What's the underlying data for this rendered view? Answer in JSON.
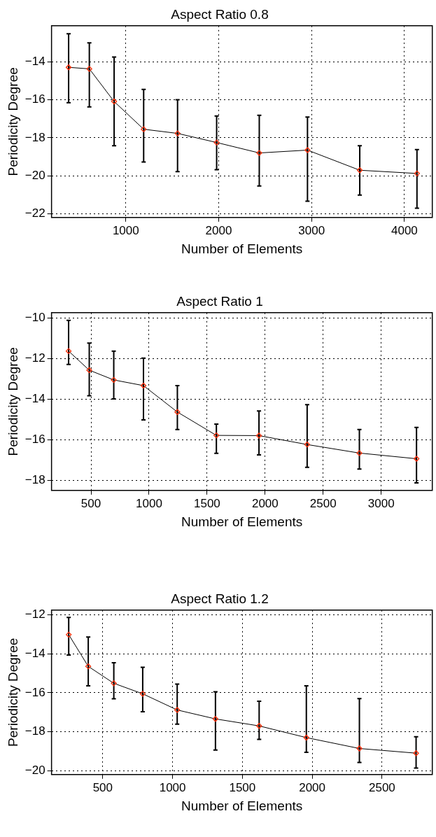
{
  "chart_data": [
    {
      "type": "line",
      "title": "Aspect Ratio 0.8",
      "xlabel": "Number of Elements",
      "ylabel": "Periodicity Degree",
      "marker": "diamond",
      "line_style": "solid",
      "grid": true,
      "x": [
        384,
        607,
        874,
        1192,
        1557,
        1978,
        2437,
        2956,
        3519,
        4135
      ],
      "series": [
        {
          "color": "#000000",
          "colors": [
            "#ff2a00",
            "#ff2a00",
            "#ff2a00",
            "#ff2a00",
            "#ff2a00",
            "#ff2a00",
            "#ff2a00",
            "#ff2a00",
            "#ff2a00",
            "#ff2a00"
          ],
          "values": [
            -14.29,
            -14.37,
            -16.09,
            -17.55,
            -17.77,
            -18.25,
            -18.8,
            -18.65,
            -19.71,
            -19.88
          ],
          "errors": [
            [
              -16.15,
              -12.52
            ],
            [
              -16.37,
              -13.0
            ],
            [
              -18.42,
              -13.75
            ],
            [
              -19.28,
              -15.45
            ],
            [
              -19.78,
              -16.0
            ],
            [
              -19.68,
              -16.85
            ],
            [
              -20.54,
              -16.82
            ],
            [
              -21.34,
              -16.91
            ],
            [
              -21.02,
              -18.42
            ],
            [
              -21.71,
              -18.62
            ]
          ]
        }
      ],
      "xlim": [
        200,
        4300
      ],
      "xticks": [
        1000,
        2000,
        3000,
        4000
      ],
      "ylim": [
        -22.2,
        -12.1
      ],
      "yticks": [
        -22,
        -20,
        -18,
        -16,
        -14
      ]
    },
    {
      "type": "line",
      "title": "Aspect Ratio 1",
      "xlabel": "Number of Elements",
      "ylabel": "Periodicity Degree",
      "marker": "diamond",
      "line_style": "solid",
      "grid": true,
      "x": [
        307,
        485,
        696,
        952,
        1244,
        1580,
        1947,
        2362,
        2812,
        3304
      ],
      "series": [
        {
          "color": "#000000",
          "colors": [
            "#ff2a00",
            "#ff2a00",
            "#ff2a00",
            "#ff2a00",
            "#ff2a00",
            "#ff2a00",
            "#ff2a00",
            "#ff2a00",
            "#ff2a00",
            "#ff2a00"
          ],
          "values": [
            -11.64,
            -12.58,
            -13.06,
            -13.34,
            -14.64,
            -15.79,
            -15.8,
            -16.24,
            -16.66,
            -16.94
          ],
          "errors": [
            [
              -12.3,
              -10.13
            ],
            [
              -13.84,
              -11.25
            ],
            [
              -13.99,
              -11.64
            ],
            [
              -15.03,
              -11.99
            ],
            [
              -15.5,
              -13.34
            ],
            [
              -16.67,
              -15.23
            ],
            [
              -16.75,
              -14.59
            ],
            [
              -17.36,
              -14.28
            ],
            [
              -17.45,
              -15.5
            ],
            [
              -18.13,
              -15.4
            ]
          ]
        }
      ],
      "xlim": [
        160,
        3440
      ],
      "xticks": [
        500,
        1000,
        1500,
        2000,
        2500,
        3000
      ],
      "ylim": [
        -18.5,
        -9.75
      ],
      "yticks": [
        -18,
        -16,
        -14,
        -12,
        -10
      ]
    },
    {
      "type": "line",
      "title": "Aspect Ratio 1.2",
      "xlabel": "Number of Elements",
      "ylabel": "Periodicity Degree",
      "marker": "diamond",
      "line_style": "solid",
      "grid": true,
      "x": [
        256,
        396,
        579,
        786,
        1033,
        1307,
        1620,
        1958,
        2338,
        2744
      ],
      "series": [
        {
          "color": "#000000",
          "colors": [
            "#ff2a00",
            "#ff2a00",
            "#ff2a00",
            "#ff2a00",
            "#ff2a00",
            "#ff2a00",
            "#ff2a00",
            "#ff2a00",
            "#ff2a00",
            "#ff2a00"
          ],
          "values": [
            -13.01,
            -14.64,
            -15.51,
            -16.05,
            -16.88,
            -17.34,
            -17.7,
            -18.3,
            -18.86,
            -19.1
          ],
          "errors": [
            [
              -14.06,
              -12.13
            ],
            [
              -15.64,
              -13.13
            ],
            [
              -16.31,
              -14.45
            ],
            [
              -16.97,
              -14.69
            ],
            [
              -17.61,
              -15.55
            ],
            [
              -18.94,
              -15.95
            ],
            [
              -18.39,
              -16.43
            ],
            [
              -19.06,
              -15.64
            ],
            [
              -19.58,
              -16.3
            ],
            [
              -19.87,
              -18.26
            ]
          ]
        }
      ],
      "xlim": [
        133,
        2860
      ],
      "xticks": [
        500,
        1000,
        1500,
        2000,
        2500
      ],
      "ylim": [
        -20.2,
        -11.75
      ],
      "yticks": [
        -20,
        -18,
        -16,
        -14,
        -12
      ]
    }
  ]
}
